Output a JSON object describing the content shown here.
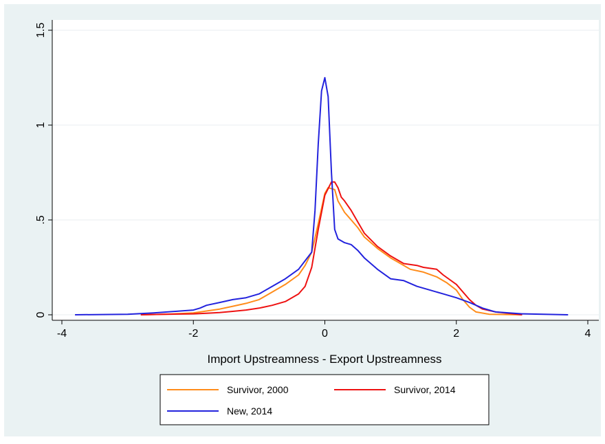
{
  "chart_data": {
    "type": "line",
    "title": "",
    "xlabel": "Import Upstreamness - Export Upstreamness",
    "ylabel": "",
    "xlim": [
      -4,
      4
    ],
    "ylim": [
      0,
      1.5
    ],
    "xticks": [
      -4,
      -2,
      0,
      2,
      4
    ],
    "xtick_labels": [
      "-4",
      "-2",
      "0",
      "2",
      "4"
    ],
    "yticks": [
      0,
      0.5,
      1,
      1.5
    ],
    "ytick_labels": [
      "0",
      ".5",
      "1",
      "1.5"
    ],
    "grid": "horizontal",
    "legend_position": "bottom",
    "series": [
      {
        "name": "Survivor, 2000",
        "color": "#ff8c1a",
        "x": [
          -2.8,
          -2.5,
          -2.2,
          -2.0,
          -1.8,
          -1.6,
          -1.4,
          -1.2,
          -1.0,
          -0.8,
          -0.6,
          -0.4,
          -0.3,
          -0.2,
          -0.1,
          0.0,
          0.05,
          0.15,
          0.2,
          0.3,
          0.4,
          0.5,
          0.6,
          0.8,
          1.0,
          1.2,
          1.3,
          1.5,
          1.7,
          1.85,
          2.0,
          2.1,
          2.2,
          2.3,
          2.5,
          3.0
        ],
        "y": [
          0.0,
          0.002,
          0.006,
          0.01,
          0.02,
          0.03,
          0.045,
          0.06,
          0.08,
          0.12,
          0.16,
          0.21,
          0.26,
          0.33,
          0.48,
          0.64,
          0.67,
          0.66,
          0.6,
          0.54,
          0.5,
          0.46,
          0.41,
          0.35,
          0.3,
          0.26,
          0.24,
          0.225,
          0.2,
          0.17,
          0.13,
          0.08,
          0.04,
          0.015,
          0.003,
          0.0
        ]
      },
      {
        "name": "Survivor, 2014",
        "color": "#ee1111",
        "x": [
          -2.8,
          -2.5,
          -2.0,
          -1.8,
          -1.6,
          -1.4,
          -1.2,
          -1.0,
          -0.8,
          -0.6,
          -0.4,
          -0.3,
          -0.2,
          -0.1,
          0.0,
          0.1,
          0.15,
          0.2,
          0.25,
          0.3,
          0.4,
          0.5,
          0.6,
          0.8,
          1.0,
          1.2,
          1.4,
          1.5,
          1.6,
          1.7,
          1.8,
          2.0,
          2.2,
          2.3,
          2.4,
          2.6,
          3.0
        ],
        "y": [
          0.0,
          0.002,
          0.005,
          0.008,
          0.012,
          0.018,
          0.025,
          0.035,
          0.05,
          0.07,
          0.11,
          0.15,
          0.25,
          0.45,
          0.63,
          0.7,
          0.7,
          0.67,
          0.62,
          0.6,
          0.55,
          0.49,
          0.43,
          0.36,
          0.31,
          0.27,
          0.26,
          0.25,
          0.245,
          0.24,
          0.21,
          0.16,
          0.08,
          0.05,
          0.03,
          0.015,
          0.0
        ]
      },
      {
        "name": "New, 2014",
        "color": "#2222dd",
        "x": [
          -3.8,
          -3.0,
          -2.8,
          -2.6,
          -2.4,
          -2.2,
          -2.0,
          -1.9,
          -1.8,
          -1.6,
          -1.4,
          -1.2,
          -1.0,
          -0.8,
          -0.6,
          -0.4,
          -0.2,
          -0.15,
          -0.1,
          -0.05,
          0.0,
          0.05,
          0.1,
          0.15,
          0.2,
          0.3,
          0.4,
          0.5,
          0.6,
          0.8,
          1.0,
          1.2,
          1.4,
          1.6,
          1.8,
          2.0,
          2.2,
          2.4,
          2.6,
          3.0,
          3.7
        ],
        "y": [
          0.0,
          0.003,
          0.006,
          0.01,
          0.015,
          0.02,
          0.025,
          0.035,
          0.05,
          0.065,
          0.08,
          0.09,
          0.11,
          0.15,
          0.19,
          0.24,
          0.33,
          0.55,
          0.9,
          1.18,
          1.25,
          1.15,
          0.75,
          0.45,
          0.4,
          0.38,
          0.37,
          0.34,
          0.3,
          0.24,
          0.19,
          0.18,
          0.15,
          0.13,
          0.11,
          0.09,
          0.065,
          0.035,
          0.015,
          0.005,
          0.0
        ]
      }
    ]
  }
}
